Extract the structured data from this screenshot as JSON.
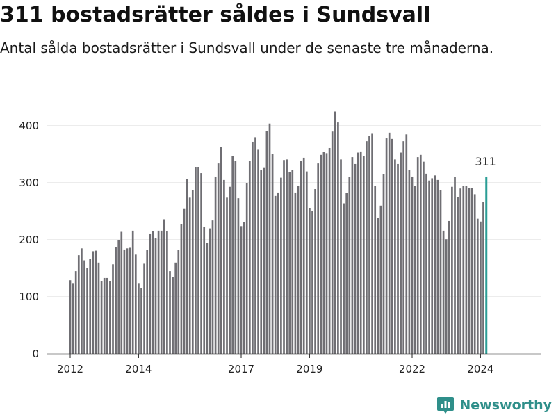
{
  "header": {
    "title": "311 bostadsrätter såldes i Sundsvall",
    "subtitle": "Antal sålda bostadsrätter i Sundsvall under de senaste tre månaderna."
  },
  "brand": {
    "name": "Newsworthy",
    "icon": "newsworthy-logo-icon",
    "color": "#2f8f8a"
  },
  "colors": {
    "bar": "#6f6e73",
    "highlight": "#2a9d95",
    "grid": "#d9d9d9",
    "axis": "#222222"
  },
  "chart_data": {
    "type": "bar",
    "title": "311 bostadsrätter såldes i Sundsvall",
    "subtitle": "Antal sålda bostadsrätter i Sundsvall under de senaste tre månaderna.",
    "xlabel": "",
    "ylabel": "",
    "ylim": [
      0,
      450
    ],
    "yticks": [
      0,
      100,
      200,
      300,
      400
    ],
    "xticks": [
      "2012",
      "2014",
      "2017",
      "2019",
      "2022",
      "2024"
    ],
    "grid": true,
    "start_period": "2012-01",
    "period_unit": "month",
    "values": [
      129,
      124,
      145,
      173,
      185,
      164,
      151,
      167,
      180,
      181,
      160,
      127,
      133,
      133,
      128,
      157,
      187,
      199,
      214,
      183,
      185,
      186,
      216,
      174,
      124,
      115,
      158,
      182,
      211,
      215,
      203,
      216,
      216,
      236,
      215,
      145,
      135,
      160,
      182,
      228,
      254,
      307,
      274,
      287,
      327,
      327,
      317,
      223,
      195,
      220,
      234,
      311,
      334,
      363,
      305,
      274,
      293,
      347,
      339,
      273,
      224,
      231,
      299,
      338,
      372,
      380,
      358,
      322,
      326,
      391,
      404,
      350,
      277,
      283,
      309,
      340,
      341,
      319,
      323,
      283,
      294,
      339,
      344,
      320,
      255,
      251,
      289,
      334,
      349,
      354,
      352,
      361,
      390,
      425,
      406,
      341,
      264,
      282,
      310,
      345,
      333,
      353,
      355,
      347,
      373,
      382,
      386,
      294,
      239,
      260,
      315,
      378,
      388,
      377,
      341,
      333,
      353,
      373,
      385,
      322,
      311,
      295,
      345,
      349,
      337,
      316,
      304,
      308,
      313,
      305,
      287,
      216,
      201,
      233,
      293,
      310,
      275,
      290,
      295,
      295,
      291,
      291,
      280,
      237,
      232,
      266,
      311
    ],
    "highlight_last": true,
    "highlight_label": "311"
  }
}
